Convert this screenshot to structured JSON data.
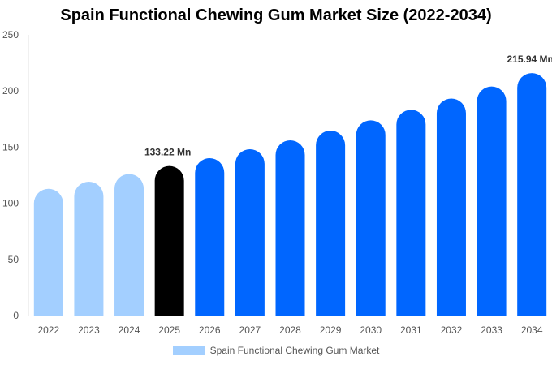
{
  "chart_data": {
    "type": "bar",
    "title": "Spain Functional Chewing Gum Market Size (2022-2034)",
    "xlabel": "",
    "ylabel": "",
    "categories": [
      "2022",
      "2023",
      "2024",
      "2025",
      "2026",
      "2027",
      "2028",
      "2029",
      "2030",
      "2031",
      "2032",
      "2033",
      "2034"
    ],
    "series": [
      {
        "name": "Spain Functional Chewing Gum Market",
        "values": [
          112.9,
          119.2,
          126.1,
          133.22,
          140.2,
          148.1,
          156.1,
          164.7,
          173.9,
          183.3,
          193.3,
          204.0,
          215.94
        ]
      }
    ],
    "ylim": [
      0,
      250
    ],
    "yticks": [
      0,
      50,
      100,
      150,
      200,
      250
    ],
    "data_labels": {
      "3": "133.22 Mn",
      "12": "215.94 Mn"
    },
    "bar_colors": [
      "#a3cfff",
      "#a3cfff",
      "#a3cfff",
      "#000000",
      "#0066ff",
      "#0066ff",
      "#0066ff",
      "#0066ff",
      "#0066ff",
      "#0066ff",
      "#0066ff",
      "#0066ff",
      "#0066ff"
    ],
    "legend_color": "#a3cfff",
    "legend_position": "bottom",
    "grid": false
  }
}
